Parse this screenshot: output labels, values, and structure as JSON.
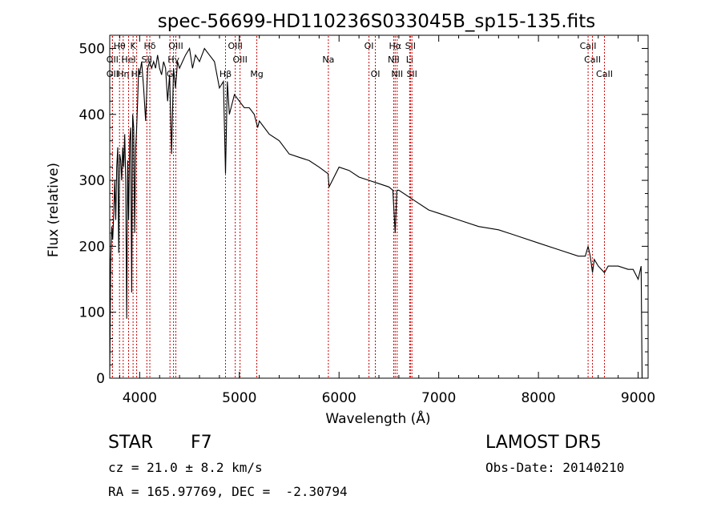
{
  "chart_data": {
    "type": "line",
    "title": "spec-56699-HD110236S033045B_sp15-135.fits",
    "xlabel": "Wavelength (Å)",
    "ylabel": "Flux (relative)",
    "xlim": [
      3700,
      9100
    ],
    "ylim": [
      0,
      520
    ],
    "xticks": [
      4000,
      5000,
      6000,
      7000,
      8000,
      9000
    ],
    "yticks": [
      0,
      100,
      200,
      300,
      400,
      500
    ],
    "grid": false,
    "line_color": "#000000",
    "marker_color": "#cc0000",
    "series": [
      {
        "x": [
          3700,
          3710,
          3720,
          3730,
          3740,
          3750,
          3760,
          3770,
          3780,
          3790,
          3800,
          3810,
          3820,
          3830,
          3840,
          3850,
          3860,
          3870,
          3880,
          3890,
          3900,
          3910,
          3920,
          3930,
          3940,
          3950,
          3960,
          3970,
          3980,
          3990,
          4000,
          4020,
          4040,
          4060,
          4080,
          4100,
          4120,
          4140,
          4160,
          4180,
          4200,
          4220,
          4240,
          4260,
          4280,
          4300,
          4320,
          4340,
          4360,
          4380,
          4400,
          4430,
          4460,
          4500,
          4530,
          4560,
          4600,
          4650,
          4700,
          4750,
          4800,
          4840,
          4861,
          4880,
          4900,
          4950,
          5000,
          5050,
          5100,
          5150,
          5183,
          5200,
          5300,
          5400,
          5500,
          5600,
          5700,
          5800,
          5890,
          5900,
          6000,
          6100,
          6200,
          6300,
          6400,
          6500,
          6540,
          6563,
          6580,
          6600,
          6700,
          6800,
          6900,
          7000,
          7200,
          7400,
          7600,
          7800,
          8000,
          8200,
          8400,
          8470,
          8498,
          8520,
          8542,
          8560,
          8600,
          8662,
          8700,
          8800,
          8900,
          8950,
          9000,
          9030,
          9040
        ],
        "y": [
          5,
          180,
          230,
          210,
          250,
          300,
          240,
          320,
          350,
          190,
          340,
          330,
          300,
          350,
          320,
          370,
          300,
          90,
          330,
          240,
          360,
          380,
          130,
          400,
          380,
          220,
          350,
          380,
          420,
          470,
          460,
          480,
          440,
          390,
          470,
          480,
          470,
          480,
          470,
          490,
          470,
          460,
          480,
          470,
          420,
          460,
          340,
          470,
          440,
          480,
          470,
          480,
          490,
          500,
          470,
          490,
          480,
          500,
          490,
          480,
          440,
          450,
          310,
          450,
          400,
          430,
          420,
          410,
          410,
          400,
          380,
          390,
          370,
          360,
          340,
          335,
          330,
          320,
          310,
          290,
          320,
          315,
          305,
          300,
          295,
          290,
          285,
          220,
          285,
          285,
          275,
          265,
          255,
          250,
          240,
          230,
          225,
          215,
          205,
          195,
          185,
          185,
          200,
          185,
          160,
          180,
          170,
          160,
          170,
          170,
          165,
          165,
          150,
          170,
          0
        ]
      }
    ],
    "lines": [
      {
        "label": "Hθ",
        "x": 3798,
        "row": 1
      },
      {
        "label": "OII",
        "x": 3727,
        "row": 2
      },
      {
        "label": "OII",
        "x": 3727,
        "row": 3
      },
      {
        "label": "Hη",
        "x": 3835,
        "row": 3
      },
      {
        "label": "HeI",
        "x": 3889,
        "row": 2
      },
      {
        "label": "K",
        "x": 3934,
        "row": 1
      },
      {
        "label": "Hε",
        "x": 3970,
        "row": 3
      },
      {
        "label": "SII",
        "x": 4072,
        "row": 2
      },
      {
        "label": "Hδ",
        "x": 4102,
        "row": 1
      },
      {
        "label": "G",
        "x": 4304,
        "row": 3
      },
      {
        "label": "OIII",
        "x": 4363,
        "row": 1
      },
      {
        "label": "Hγ",
        "x": 4340,
        "row": 2
      },
      {
        "label": "OIII",
        "x": 4959,
        "row": 1
      },
      {
        "label": "OIII",
        "x": 5007,
        "row": 2
      },
      {
        "label": "Hβ",
        "x": 4861,
        "row": 3
      },
      {
        "label": "Mg",
        "x": 5175,
        "row": 3
      },
      {
        "label": "Na",
        "x": 5893,
        "row": 2
      },
      {
        "label": "OI",
        "x": 6300,
        "row": 1
      },
      {
        "label": "OI",
        "x": 6364,
        "row": 3
      },
      {
        "label": "Hα",
        "x": 6563,
        "row": 1
      },
      {
        "label": "NII",
        "x": 6548,
        "row": 2
      },
      {
        "label": "NII",
        "x": 6583,
        "row": 3
      },
      {
        "label": "SII",
        "x": 6716,
        "row": 1
      },
      {
        "label": "Li",
        "x": 6708,
        "row": 2
      },
      {
        "label": "SII",
        "x": 6731,
        "row": 3
      },
      {
        "label": "CaII",
        "x": 8498,
        "row": 1
      },
      {
        "label": "CaII",
        "x": 8542,
        "row": 2
      },
      {
        "label": "CaII",
        "x": 8662,
        "row": 3
      }
    ]
  },
  "info": {
    "class_label": "STAR",
    "subclass": "F7",
    "cz": "cz = 21.0 ± 8.2 km/s",
    "coords": "RA = 165.97769, DEC =  -2.30794",
    "survey": "LAMOST DR5",
    "obs_date": "Obs-Date: 20140210"
  }
}
